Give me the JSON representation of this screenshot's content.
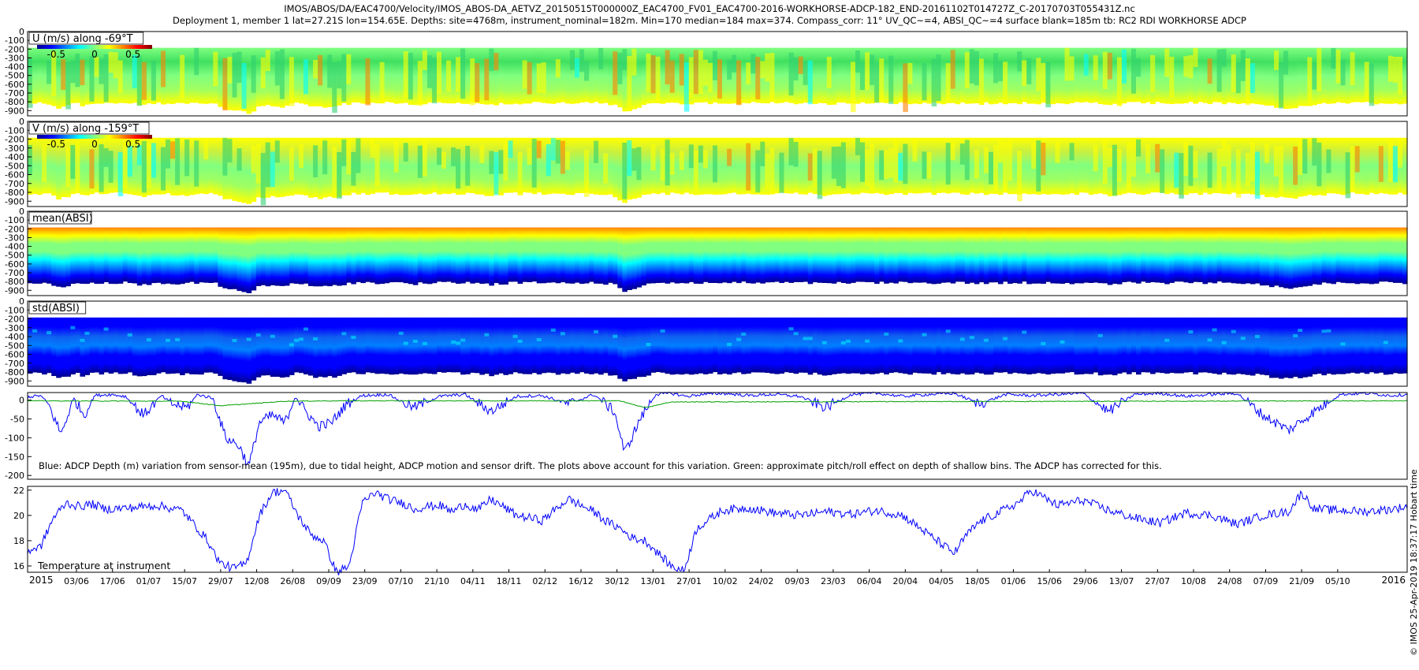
{
  "header": {
    "line1": "IMOS/ABOS/DA/EAC4700/Velocity/IMOS_ABOS-DA_AETVZ_20150515T000000Z_EAC4700_FV01_EAC4700-2016-WORKHORSE-ADCP-182_END-20161102T014727Z_C-20170703T055431Z.nc",
    "line2": "Deployment 1, member 1 lat=27.21S lon=154.65E. Depths: site=4768m, instrument_nominal=182m. Min=170 median=184 max=374. Compass_corr: 11° UV_QC~=4, ABSI_QC~=4 surface blank=185m tb: RC2 RDI WORKHORSE ADCP"
  },
  "side_note": "© IMOS 25-Apr-2019 18:37:17 Hobart time",
  "colors": {
    "blue_line": "#0000ff",
    "green_line": "#00a000",
    "jet": [
      "#00008f",
      "#0000ff",
      "#0080ff",
      "#00ffff",
      "#80ff80",
      "#ffff00",
      "#ff8000",
      "#ff0000",
      "#800000"
    ]
  },
  "chart_data": [
    {
      "type": "heatmap",
      "title": "U (m/s) along -69°T",
      "ylabel": "",
      "yticks": [
        0,
        -100,
        -200,
        -300,
        -400,
        -500,
        -600,
        -700,
        -800,
        -900
      ],
      "ylim": [
        -960,
        0
      ],
      "colorbar": {
        "ticks": [
          -0.5,
          0,
          0.5
        ],
        "range": [
          -0.75,
          0.75
        ]
      },
      "data_top_depth": -185,
      "bottom_depth_range": [
        -780,
        -930
      ],
      "shared_time_axis": true
    },
    {
      "type": "heatmap",
      "title": "V (m/s) along -159°T",
      "yticks": [
        0,
        -100,
        -200,
        -300,
        -400,
        -500,
        -600,
        -700,
        -800,
        -900
      ],
      "ylim": [
        -960,
        0
      ],
      "colorbar": {
        "ticks": [
          -0.5,
          0,
          0.5
        ],
        "range": [
          -0.75,
          0.75
        ]
      },
      "data_top_depth": -185,
      "bottom_depth_range": [
        -780,
        -930
      ]
    },
    {
      "type": "heatmap",
      "title": "mean(ABSI)",
      "yticks": [
        0,
        -100,
        -200,
        -300,
        -400,
        -500,
        -600,
        -700,
        -800,
        -900
      ],
      "ylim": [
        -960,
        0
      ],
      "data_top_depth": -185,
      "bottom_depth_range": [
        -780,
        -930
      ]
    },
    {
      "type": "heatmap",
      "title": "std(ABSI)",
      "yticks": [
        0,
        -100,
        -200,
        -300,
        -400,
        -500,
        -600,
        -700,
        -800,
        -900
      ],
      "ylim": [
        -960,
        0
      ],
      "data_top_depth": -185,
      "bottom_depth_range": [
        -780,
        -930
      ]
    },
    {
      "type": "line",
      "annotation": "Blue: ADCP Depth (m) variation from sensor-mean (195m), due to tidal height, ADCP motion and sensor drift. The plots above account for this variation. Green: approximate pitch/roll effect on depth of shallow bins. The ADCP has corrected for this.",
      "yticks": [
        0,
        -50,
        -100,
        -150,
        -200
      ],
      "ylim": [
        -210,
        20
      ],
      "series": [
        {
          "color": "blue",
          "x_day": [
            0,
            5,
            8,
            13,
            18,
            22,
            26,
            32,
            38,
            45,
            52,
            56,
            62,
            66,
            72,
            77,
            82,
            86,
            90,
            95,
            100,
            104,
            108,
            113,
            118,
            124,
            130,
            140,
            150,
            160,
            170,
            180,
            190,
            200,
            210,
            220,
            228,
            232,
            238,
            244,
            250,
            256,
            262,
            270,
            280,
            290,
            300,
            310,
            320,
            330,
            340,
            350,
            360,
            370,
            380,
            390,
            400,
            410,
            420,
            430,
            440,
            450,
            460,
            470,
            480,
            490,
            500,
            510,
            520,
            530,
            536
          ],
          "y": [
            8,
            12,
            -10,
            -90,
            5,
            -40,
            12,
            15,
            10,
            -40,
            12,
            -10,
            -20,
            15,
            5,
            -100,
            -120,
            -175,
            -60,
            -40,
            -60,
            10,
            -30,
            -70,
            -60,
            -10,
            12,
            15,
            -20,
            10,
            15,
            -30,
            10,
            12,
            -10,
            15,
            -30,
            -140,
            -50,
            15,
            18,
            10,
            15,
            18,
            12,
            15,
            10,
            -20,
            15,
            18,
            10,
            15,
            18,
            -10,
            15,
            12,
            15,
            18,
            -30,
            15,
            18,
            10,
            15,
            18,
            -40,
            -80,
            -30,
            15,
            18,
            12,
            15
          ]
        },
        {
          "color": "green",
          "x_day": [
            0,
            60,
            75,
            90,
            100,
            120,
            230,
            240,
            250,
            536
          ],
          "y": [
            -2,
            -3,
            -15,
            -8,
            -3,
            -2,
            -2,
            -20,
            -5,
            -2
          ]
        }
      ]
    },
    {
      "type": "line",
      "title": "Temperature at instrument",
      "yticks": [
        16,
        18,
        20,
        22
      ],
      "ylim": [
        15.5,
        22.3
      ],
      "series": [
        {
          "color": "blue",
          "x_day": [
            0,
            5,
            10,
            15,
            20,
            25,
            30,
            40,
            50,
            60,
            70,
            72,
            75,
            80,
            85,
            90,
            95,
            100,
            105,
            110,
            115,
            120,
            125,
            130,
            135,
            140,
            145,
            148,
            150,
            155,
            160,
            165,
            170,
            175,
            180,
            190,
            200,
            210,
            220,
            225,
            230,
            235,
            240,
            245,
            250,
            255,
            260,
            270,
            280,
            290,
            300,
            310,
            320,
            330,
            340,
            350,
            360,
            365,
            370,
            375,
            380,
            385,
            390,
            400,
            410,
            420,
            430,
            440,
            450,
            460,
            470,
            480,
            490,
            495,
            500,
            510,
            520,
            530,
            536
          ],
          "y": [
            17.2,
            17.5,
            19.8,
            21.0,
            20.7,
            20.9,
            20.5,
            20.6,
            20.8,
            20.4,
            18.0,
            17.2,
            16.2,
            15.8,
            16.2,
            20.0,
            21.8,
            22.0,
            20.0,
            18.5,
            18.0,
            15.5,
            16.0,
            21.0,
            21.8,
            21.3,
            21.0,
            20.8,
            20.5,
            20.7,
            20.8,
            20.3,
            20.9,
            20.4,
            21.3,
            20.0,
            19.6,
            21.3,
            20.3,
            19.5,
            19.0,
            18.2,
            18.0,
            17.0,
            16.0,
            15.6,
            19.0,
            20.4,
            20.6,
            20.2,
            20.0,
            20.3,
            20.1,
            20.4,
            20.0,
            18.5,
            17.0,
            18.5,
            19.5,
            20.0,
            20.5,
            21.0,
            22.0,
            20.8,
            21.2,
            20.4,
            19.8,
            19.4,
            20.2,
            20.0,
            19.3,
            20.0,
            20.3,
            21.8,
            20.5,
            20.4,
            20.3,
            20.5,
            20.7
          ]
        }
      ]
    }
  ],
  "time_axis": {
    "start_label": "2015",
    "end_label": "2016",
    "tick_labels": [
      "03/06",
      "17/06",
      "01/07",
      "15/07",
      "29/07",
      "12/08",
      "26/08",
      "09/09",
      "23/09",
      "07/10",
      "21/10",
      "04/11",
      "18/11",
      "02/12",
      "16/12",
      "30/12",
      "13/01",
      "27/01",
      "10/02",
      "24/02",
      "09/03",
      "23/03",
      "06/04",
      "20/04",
      "04/05",
      "18/05",
      "01/06",
      "15/06",
      "29/06",
      "13/07",
      "27/07",
      "10/08",
      "24/08",
      "07/09",
      "21/09",
      "05/10"
    ]
  }
}
